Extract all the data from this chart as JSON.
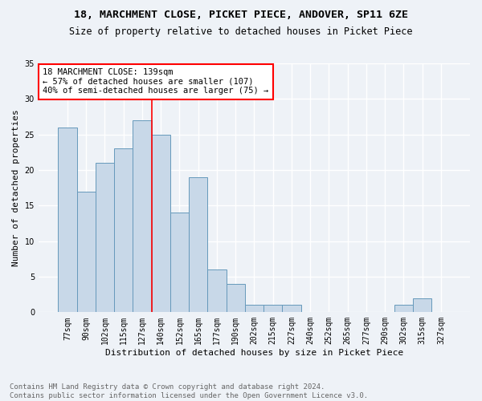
{
  "title1": "18, MARCHMENT CLOSE, PICKET PIECE, ANDOVER, SP11 6ZE",
  "title2": "Size of property relative to detached houses in Picket Piece",
  "xlabel": "Distribution of detached houses by size in Picket Piece",
  "ylabel": "Number of detached properties",
  "bin_labels": [
    "77sqm",
    "90sqm",
    "102sqm",
    "115sqm",
    "127sqm",
    "140sqm",
    "152sqm",
    "165sqm",
    "177sqm",
    "190sqm",
    "202sqm",
    "215sqm",
    "227sqm",
    "240sqm",
    "252sqm",
    "265sqm",
    "277sqm",
    "290sqm",
    "302sqm",
    "315sqm",
    "327sqm"
  ],
  "bin_values": [
    26,
    17,
    21,
    23,
    27,
    25,
    14,
    19,
    6,
    4,
    1,
    1,
    1,
    0,
    0,
    0,
    0,
    0,
    1,
    2,
    0
  ],
  "bar_color": "#c8d8e8",
  "bar_edge_color": "#6699bb",
  "vline_bin_index": 4.5,
  "annotation_text_line1": "18 MARCHMENT CLOSE: 139sqm",
  "annotation_text_line2": "← 57% of detached houses are smaller (107)",
  "annotation_text_line3": "40% of semi-detached houses are larger (75) →",
  "annotation_box_color": "white",
  "annotation_border_color": "red",
  "vline_color": "red",
  "ylim": [
    0,
    35
  ],
  "yticks": [
    0,
    5,
    10,
    15,
    20,
    25,
    30,
    35
  ],
  "footer_text": "Contains HM Land Registry data © Crown copyright and database right 2024.\nContains public sector information licensed under the Open Government Licence v3.0.",
  "bg_color": "#eef2f7",
  "grid_color": "white",
  "title_fontsize": 9.5,
  "subtitle_fontsize": 8.5,
  "ylabel_fontsize": 8,
  "xlabel_fontsize": 8,
  "tick_fontsize": 7,
  "annotation_fontsize": 7.5,
  "footer_fontsize": 6.5
}
